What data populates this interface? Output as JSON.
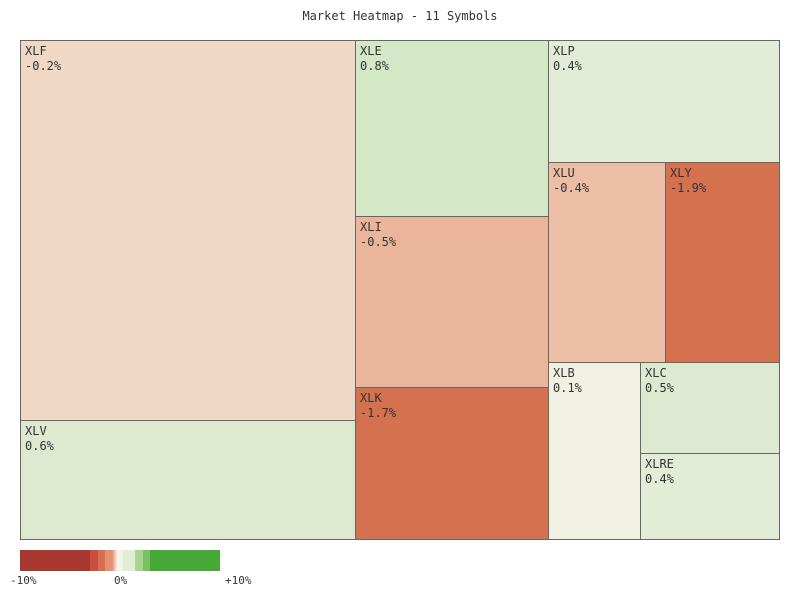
{
  "chart_data": {
    "type": "heatmap",
    "subtype": "treemap",
    "title": "Market Heatmap - 11 Symbols",
    "tiles": [
      {
        "symbol": "XLF",
        "change": "-0.2%",
        "color": "#efd9c6"
      },
      {
        "symbol": "XLV",
        "change": "0.6%",
        "color": "#dfe9d0"
      },
      {
        "symbol": "XLE",
        "change": "0.8%",
        "color": "#d4e7c6"
      },
      {
        "symbol": "XLI",
        "change": "-0.5%",
        "color": "#eab59b"
      },
      {
        "symbol": "XLK",
        "change": "-1.7%",
        "color": "#d4714f"
      },
      {
        "symbol": "XLP",
        "change": "0.4%",
        "color": "#e2ecd6"
      },
      {
        "symbol": "XLU",
        "change": "-0.4%",
        "color": "#ecbea6"
      },
      {
        "symbol": "XLY",
        "change": "-1.9%",
        "color": "#d4714f"
      },
      {
        "symbol": "XLB",
        "change": "0.1%",
        "color": "#f0f1e3"
      },
      {
        "symbol": "XLC",
        "change": "0.5%",
        "color": "#dde9d0"
      },
      {
        "symbol": "XLRE",
        "change": "0.4%",
        "color": "#e2ecd6"
      }
    ],
    "legend": {
      "min_label": "-10%",
      "mid_label": "0%",
      "max_label": "+10%",
      "colors": [
        "#a8372e",
        "#c85040",
        "#d47050",
        "#e59070",
        "#f3f0e8",
        "#e0eed6",
        "#a8d490",
        "#78c060",
        "#46a836"
      ]
    }
  }
}
